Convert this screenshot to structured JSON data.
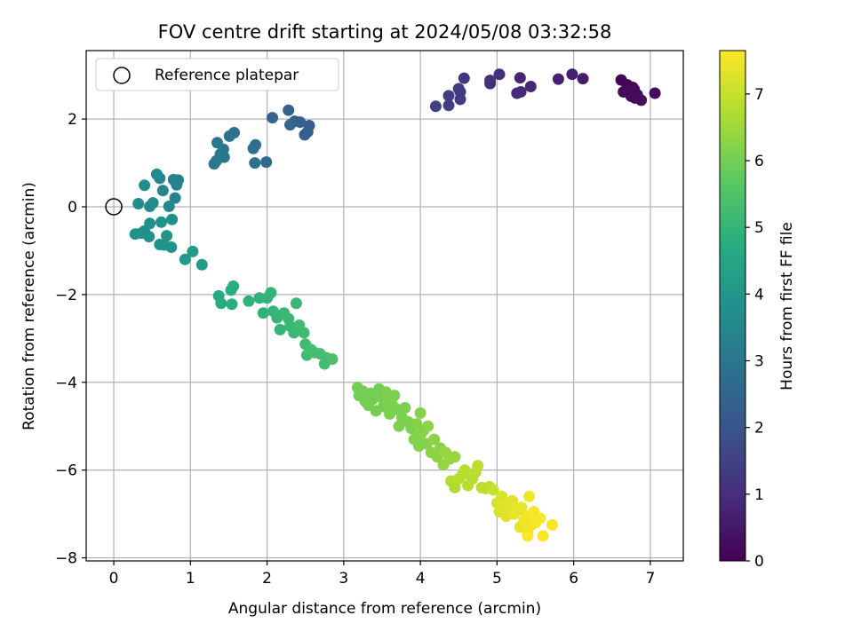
{
  "chart_data": {
    "type": "scatter",
    "title": "FOV centre drift starting at 2024/05/08 03:32:58",
    "xlabel": "Angular distance from reference (arcmin)",
    "ylabel": "Rotation from reference (arcmin)",
    "xlim": [
      -0.36,
      7.43
    ],
    "ylim": [
      -8.07,
      3.56
    ],
    "x_ticks": [
      0,
      1,
      2,
      3,
      4,
      5,
      6,
      7
    ],
    "y_ticks": [
      -8,
      -6,
      -4,
      -2,
      0,
      2
    ],
    "grid": true,
    "legend": {
      "placement": "top-left",
      "entries": [
        "Reference platepar"
      ]
    },
    "reference": {
      "x": 0,
      "y": 0,
      "label": "Reference platepar"
    },
    "colorbar": {
      "label": "Hours from first FF file",
      "min": 0,
      "max": 7.65,
      "ticks": [
        0,
        1,
        2,
        3,
        4,
        5,
        6,
        7
      ],
      "colormap": "viridis"
    },
    "series": [
      {
        "color_by": "hours",
        "points": [
          {
            "x": 7.06,
            "y": 2.59,
            "h": 0.2
          },
          {
            "x": 6.88,
            "y": 2.43,
            "h": 0.3
          },
          {
            "x": 6.8,
            "y": 2.48,
            "h": 0.3
          },
          {
            "x": 6.83,
            "y": 2.55,
            "h": 0.2
          },
          {
            "x": 6.77,
            "y": 2.72,
            "h": 0.15
          },
          {
            "x": 6.7,
            "y": 2.78,
            "h": 0.1
          },
          {
            "x": 6.75,
            "y": 2.52,
            "h": 0.2
          },
          {
            "x": 6.65,
            "y": 2.62,
            "h": 0.2
          },
          {
            "x": 6.62,
            "y": 2.89,
            "h": 0.1
          },
          {
            "x": 6.72,
            "y": 2.62,
            "h": 0.25
          },
          {
            "x": 6.79,
            "y": 2.67,
            "h": 0.2
          },
          {
            "x": 6.12,
            "y": 2.92,
            "h": 0.6
          },
          {
            "x": 5.98,
            "y": 3.02,
            "h": 0.65
          },
          {
            "x": 5.8,
            "y": 2.91,
            "h": 0.7
          },
          {
            "x": 5.44,
            "y": 2.74,
            "h": 0.8
          },
          {
            "x": 5.3,
            "y": 2.94,
            "h": 0.8
          },
          {
            "x": 5.31,
            "y": 2.62,
            "h": 0.85
          },
          {
            "x": 5.26,
            "y": 2.59,
            "h": 0.9
          },
          {
            "x": 5.03,
            "y": 3.02,
            "h": 1.0
          },
          {
            "x": 4.91,
            "y": 2.81,
            "h": 1.0
          },
          {
            "x": 4.91,
            "y": 2.88,
            "h": 1.05
          },
          {
            "x": 4.57,
            "y": 2.93,
            "h": 1.2
          },
          {
            "x": 4.52,
            "y": 2.62,
            "h": 1.3
          },
          {
            "x": 4.52,
            "y": 2.45,
            "h": 1.35
          },
          {
            "x": 4.5,
            "y": 2.69,
            "h": 1.3
          },
          {
            "x": 4.37,
            "y": 2.53,
            "h": 1.4
          },
          {
            "x": 4.37,
            "y": 2.31,
            "h": 1.45
          },
          {
            "x": 4.2,
            "y": 2.29,
            "h": 1.5
          },
          {
            "x": 2.55,
            "y": 1.85,
            "h": 2.2
          },
          {
            "x": 2.53,
            "y": 1.71,
            "h": 2.3
          },
          {
            "x": 2.49,
            "y": 1.64,
            "h": 2.3
          },
          {
            "x": 2.43,
            "y": 1.93,
            "h": 2.4
          },
          {
            "x": 2.36,
            "y": 1.95,
            "h": 2.4
          },
          {
            "x": 2.3,
            "y": 1.87,
            "h": 2.5
          },
          {
            "x": 2.28,
            "y": 2.2,
            "h": 2.4
          },
          {
            "x": 2.07,
            "y": 2.03,
            "h": 2.5
          },
          {
            "x": 1.99,
            "y": 1.02,
            "h": 2.6
          },
          {
            "x": 1.85,
            "y": 1.41,
            "h": 2.7
          },
          {
            "x": 1.82,
            "y": 1.33,
            "h": 2.8
          },
          {
            "x": 1.84,
            "y": 1.0,
            "h": 2.8
          },
          {
            "x": 1.57,
            "y": 1.69,
            "h": 2.8
          },
          {
            "x": 1.51,
            "y": 1.61,
            "h": 2.9
          },
          {
            "x": 1.43,
            "y": 1.31,
            "h": 2.9
          },
          {
            "x": 1.44,
            "y": 1.13,
            "h": 3.0
          },
          {
            "x": 1.35,
            "y": 1.46,
            "h": 3.0
          },
          {
            "x": 1.34,
            "y": 1.05,
            "h": 3.0
          },
          {
            "x": 1.31,
            "y": 0.98,
            "h": 3.1
          },
          {
            "x": 1.39,
            "y": 1.2,
            "h": 3.1
          },
          {
            "x": 0.84,
            "y": 0.61,
            "h": 3.3
          },
          {
            "x": 0.82,
            "y": 0.5,
            "h": 3.3
          },
          {
            "x": 0.8,
            "y": 0.2,
            "h": 3.4
          },
          {
            "x": 0.78,
            "y": 0.62,
            "h": 3.4
          },
          {
            "x": 0.72,
            "y": 0.01,
            "h": 3.5
          },
          {
            "x": 0.64,
            "y": 0.37,
            "h": 3.5
          },
          {
            "x": 0.6,
            "y": 0.65,
            "h": 3.5
          },
          {
            "x": 0.56,
            "y": 0.74,
            "h": 3.6
          },
          {
            "x": 0.51,
            "y": 0.09,
            "h": 3.6
          },
          {
            "x": 0.47,
            "y": 0.01,
            "h": 3.6
          },
          {
            "x": 0.4,
            "y": 0.49,
            "h": 3.7
          },
          {
            "x": 0.32,
            "y": 0.07,
            "h": 3.7
          },
          {
            "x": 0.76,
            "y": -0.29,
            "h": 3.8
          },
          {
            "x": 0.75,
            "y": -0.92,
            "h": 3.9
          },
          {
            "x": 0.69,
            "y": -0.66,
            "h": 3.9
          },
          {
            "x": 0.66,
            "y": -0.87,
            "h": 3.9
          },
          {
            "x": 0.62,
            "y": -0.35,
            "h": 3.9
          },
          {
            "x": 0.6,
            "y": -0.86,
            "h": 3.9
          },
          {
            "x": 0.47,
            "y": -0.38,
            "h": 3.8
          },
          {
            "x": 0.46,
            "y": -0.68,
            "h": 3.8
          },
          {
            "x": 0.4,
            "y": -0.55,
            "h": 3.8
          },
          {
            "x": 0.36,
            "y": -0.6,
            "h": 3.8
          },
          {
            "x": 0.28,
            "y": -0.62,
            "h": 3.8
          },
          {
            "x": 0.93,
            "y": -1.2,
            "h": 4.1
          },
          {
            "x": 1.03,
            "y": -1.02,
            "h": 4.1
          },
          {
            "x": 1.15,
            "y": -1.32,
            "h": 4.2
          },
          {
            "x": 1.37,
            "y": -2.03,
            "h": 4.7
          },
          {
            "x": 1.4,
            "y": -2.2,
            "h": 4.7
          },
          {
            "x": 1.53,
            "y": -1.9,
            "h": 4.8
          },
          {
            "x": 1.54,
            "y": -2.22,
            "h": 4.8
          },
          {
            "x": 1.56,
            "y": -1.81,
            "h": 4.8
          },
          {
            "x": 1.76,
            "y": -2.15,
            "h": 4.9
          },
          {
            "x": 1.9,
            "y": -2.08,
            "h": 4.9
          },
          {
            "x": 1.95,
            "y": -2.42,
            "h": 4.9
          },
          {
            "x": 2.0,
            "y": -2.08,
            "h": 5.0
          },
          {
            "x": 2.05,
            "y": -1.96,
            "h": 5.0
          },
          {
            "x": 2.08,
            "y": -2.38,
            "h": 5.0
          },
          {
            "x": 2.13,
            "y": -2.53,
            "h": 5.0
          },
          {
            "x": 2.17,
            "y": -2.8,
            "h": 5.0
          },
          {
            "x": 2.22,
            "y": -2.42,
            "h": 5.1
          },
          {
            "x": 2.28,
            "y": -2.55,
            "h": 5.1
          },
          {
            "x": 2.3,
            "y": -2.72,
            "h": 5.1
          },
          {
            "x": 2.35,
            "y": -2.87,
            "h": 5.1
          },
          {
            "x": 2.38,
            "y": -2.2,
            "h": 5.1
          },
          {
            "x": 2.42,
            "y": -2.7,
            "h": 5.2
          },
          {
            "x": 2.48,
            "y": -2.87,
            "h": 5.2
          },
          {
            "x": 2.5,
            "y": -3.13,
            "h": 5.2
          },
          {
            "x": 2.52,
            "y": -3.38,
            "h": 5.2
          },
          {
            "x": 2.57,
            "y": -3.25,
            "h": 5.3
          },
          {
            "x": 2.62,
            "y": -3.32,
            "h": 5.3
          },
          {
            "x": 2.69,
            "y": -3.35,
            "h": 5.3
          },
          {
            "x": 2.75,
            "y": -3.58,
            "h": 5.3
          },
          {
            "x": 2.77,
            "y": -3.44,
            "h": 5.3
          },
          {
            "x": 2.85,
            "y": -3.47,
            "h": 5.4
          },
          {
            "x": 3.18,
            "y": -4.12,
            "h": 6.0
          },
          {
            "x": 3.2,
            "y": -4.3,
            "h": 6.0
          },
          {
            "x": 3.25,
            "y": -4.2,
            "h": 6.0
          },
          {
            "x": 3.28,
            "y": -4.43,
            "h": 6.0
          },
          {
            "x": 3.32,
            "y": -4.52,
            "h": 6.0
          },
          {
            "x": 3.35,
            "y": -4.25,
            "h": 6.0
          },
          {
            "x": 3.38,
            "y": -4.38,
            "h": 6.0
          },
          {
            "x": 3.42,
            "y": -4.65,
            "h": 6.0
          },
          {
            "x": 3.46,
            "y": -4.15,
            "h": 6.0
          },
          {
            "x": 3.5,
            "y": -4.35,
            "h": 6.0
          },
          {
            "x": 3.52,
            "y": -4.55,
            "h": 6.0
          },
          {
            "x": 3.55,
            "y": -4.22,
            "h": 6.1
          },
          {
            "x": 3.58,
            "y": -4.42,
            "h": 6.1
          },
          {
            "x": 3.6,
            "y": -4.72,
            "h": 6.1
          },
          {
            "x": 3.63,
            "y": -4.5,
            "h": 6.1
          },
          {
            "x": 3.66,
            "y": -4.3,
            "h": 6.1
          },
          {
            "x": 3.7,
            "y": -4.62,
            "h": 6.1
          },
          {
            "x": 3.72,
            "y": -5.0,
            "h": 6.1
          },
          {
            "x": 3.76,
            "y": -4.8,
            "h": 6.1
          },
          {
            "x": 3.8,
            "y": -4.58,
            "h": 6.1
          },
          {
            "x": 3.84,
            "y": -4.9,
            "h": 6.1
          },
          {
            "x": 3.88,
            "y": -5.05,
            "h": 6.1
          },
          {
            "x": 3.92,
            "y": -5.3,
            "h": 6.2
          },
          {
            "x": 3.95,
            "y": -4.95,
            "h": 6.2
          },
          {
            "x": 3.98,
            "y": -5.45,
            "h": 6.2
          },
          {
            "x": 4.0,
            "y": -5.2,
            "h": 6.2
          },
          {
            "x": 4.0,
            "y": -4.7,
            "h": 6.2
          },
          {
            "x": 4.04,
            "y": -5.1,
            "h": 6.2
          },
          {
            "x": 4.08,
            "y": -5.4,
            "h": 6.2
          },
          {
            "x": 4.1,
            "y": -5.0,
            "h": 6.3
          },
          {
            "x": 4.14,
            "y": -5.6,
            "h": 6.3
          },
          {
            "x": 4.18,
            "y": -5.3,
            "h": 6.3
          },
          {
            "x": 4.22,
            "y": -5.7,
            "h": 6.3
          },
          {
            "x": 4.26,
            "y": -5.5,
            "h": 6.3
          },
          {
            "x": 4.3,
            "y": -5.88,
            "h": 6.4
          },
          {
            "x": 4.33,
            "y": -5.6,
            "h": 6.4
          },
          {
            "x": 4.38,
            "y": -5.75,
            "h": 6.4
          },
          {
            "x": 4.45,
            "y": -5.7,
            "h": 6.4
          },
          {
            "x": 4.4,
            "y": -6.25,
            "h": 6.7
          },
          {
            "x": 4.45,
            "y": -6.4,
            "h": 6.7
          },
          {
            "x": 4.5,
            "y": -6.2,
            "h": 6.8
          },
          {
            "x": 4.55,
            "y": -6.1,
            "h": 6.8
          },
          {
            "x": 4.58,
            "y": -6.0,
            "h": 6.8
          },
          {
            "x": 4.62,
            "y": -6.35,
            "h": 6.8
          },
          {
            "x": 4.68,
            "y": -6.2,
            "h": 6.8
          },
          {
            "x": 4.72,
            "y": -6.05,
            "h": 6.8
          },
          {
            "x": 4.75,
            "y": -5.9,
            "h": 6.9
          },
          {
            "x": 4.8,
            "y": -6.4,
            "h": 6.9
          },
          {
            "x": 4.85,
            "y": -6.42,
            "h": 6.9
          },
          {
            "x": 4.9,
            "y": -6.38,
            "h": 6.9
          },
          {
            "x": 4.95,
            "y": -6.45,
            "h": 7.0
          },
          {
            "x": 5.0,
            "y": -6.75,
            "h": 7.2
          },
          {
            "x": 5.03,
            "y": -6.95,
            "h": 7.2
          },
          {
            "x": 5.06,
            "y": -6.6,
            "h": 7.2
          },
          {
            "x": 5.08,
            "y": -6.8,
            "h": 7.3
          },
          {
            "x": 5.12,
            "y": -7.05,
            "h": 7.3
          },
          {
            "x": 5.16,
            "y": -6.85,
            "h": 7.3
          },
          {
            "x": 5.2,
            "y": -6.7,
            "h": 7.3
          },
          {
            "x": 5.22,
            "y": -7.0,
            "h": 7.4
          },
          {
            "x": 5.26,
            "y": -6.92,
            "h": 7.4
          },
          {
            "x": 5.3,
            "y": -7.3,
            "h": 7.4
          },
          {
            "x": 5.32,
            "y": -6.85,
            "h": 7.4
          },
          {
            "x": 5.35,
            "y": -7.15,
            "h": 7.5
          },
          {
            "x": 5.38,
            "y": -7.05,
            "h": 7.5
          },
          {
            "x": 5.4,
            "y": -7.4,
            "h": 7.5
          },
          {
            "x": 5.42,
            "y": -6.6,
            "h": 7.5
          },
          {
            "x": 5.45,
            "y": -7.25,
            "h": 7.5
          },
          {
            "x": 5.48,
            "y": -6.95,
            "h": 7.6
          },
          {
            "x": 5.5,
            "y": -7.2,
            "h": 7.6
          },
          {
            "x": 5.56,
            "y": -7.1,
            "h": 7.6
          },
          {
            "x": 5.6,
            "y": -7.5,
            "h": 7.6
          },
          {
            "x": 5.72,
            "y": -7.25,
            "h": 7.6
          },
          {
            "x": 5.4,
            "y": -7.5,
            "h": 7.6
          }
        ]
      }
    ]
  }
}
